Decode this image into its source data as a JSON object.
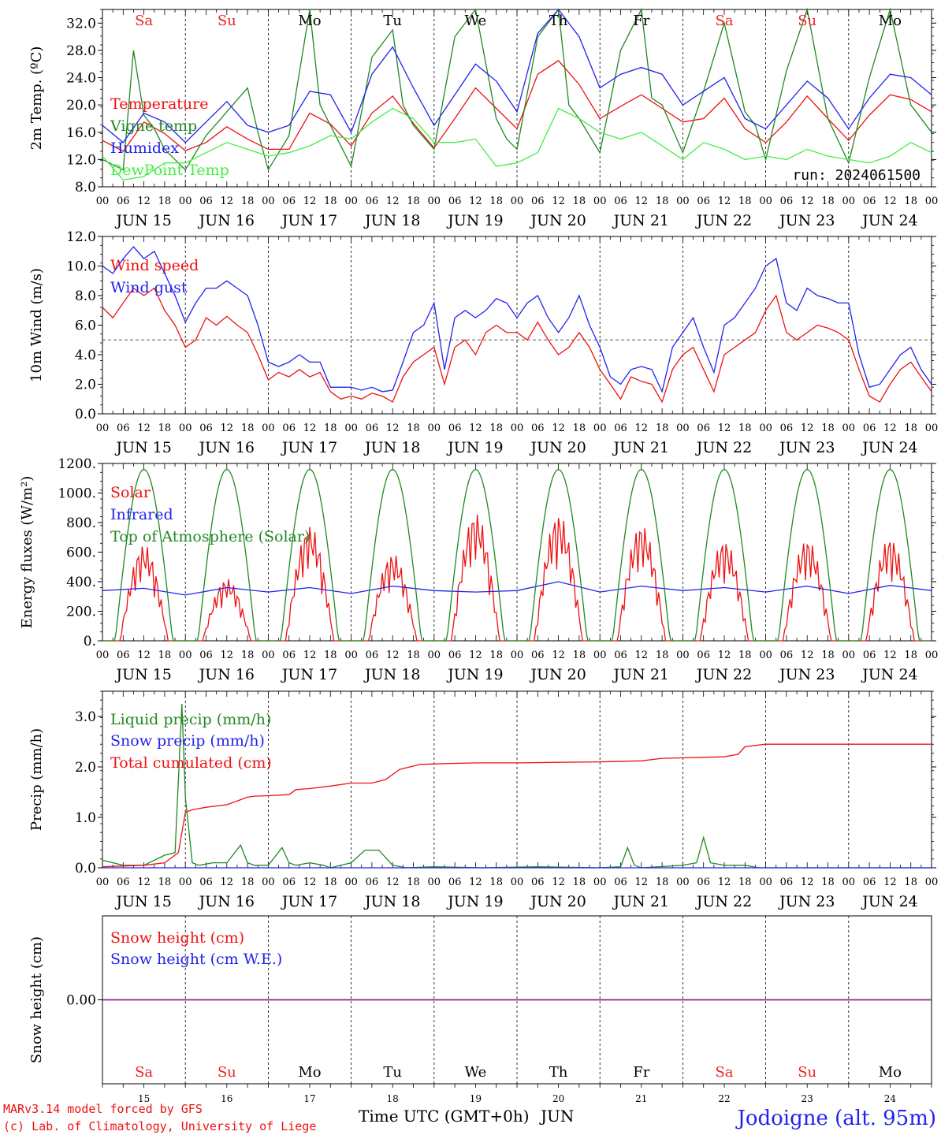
{
  "days": [
    "15",
    "16",
    "17",
    "18",
    "19",
    "20",
    "21",
    "22",
    "23",
    "24"
  ],
  "month": "JUN",
  "hour_ticks": [
    "00",
    "06",
    "12",
    "18"
  ],
  "weekdays": [
    {
      "label": "Sa",
      "color": "#ee2222"
    },
    {
      "label": "Su",
      "color": "#ee2222"
    },
    {
      "label": "Mo",
      "color": "#000000"
    },
    {
      "label": "Tu",
      "color": "#000000"
    },
    {
      "label": "We",
      "color": "#000000"
    },
    {
      "label": "Th",
      "color": "#000000"
    },
    {
      "label": "Fr",
      "color": "#000000"
    },
    {
      "label": "Sa",
      "color": "#ee2222"
    },
    {
      "label": "Su",
      "color": "#ee2222"
    },
    {
      "label": "Mo",
      "color": "#000000"
    }
  ],
  "run_label": "run: 2024061500",
  "footer": {
    "credit_line1": "MARv3.14 model forced by GFS",
    "credit_line2": "(c) Lab. of Climatology, University of Liege",
    "xlabel": "Time UTC (GMT+0h)",
    "month_label": "JUN",
    "station": "Jodoigne (alt. 95m)"
  },
  "chart_data": [
    {
      "type": "line",
      "ylabel": "2m Temp. (ºC)",
      "ylim": [
        8,
        34
      ],
      "yticks": [
        "8.0",
        "12.0",
        "16.0",
        "20.0",
        "24.0",
        "28.0",
        "32.0"
      ],
      "x_unit": "hours since JUN 15 00 UTC",
      "series": [
        {
          "name": "Temperature",
          "color": "#ee1111",
          "x": [
            0,
            6,
            12,
            18,
            24,
            30,
            36,
            42,
            48,
            54,
            60,
            66,
            72,
            78,
            84,
            90,
            96,
            102,
            108,
            114,
            120,
            126,
            132,
            138,
            144,
            150,
            156,
            162,
            168,
            174,
            180,
            186,
            192,
            198,
            204,
            210,
            216,
            222,
            228,
            234,
            240
          ],
          "y": [
            14.8,
            13.2,
            17.5,
            15.8,
            13.3,
            14.5,
            16.8,
            15.0,
            13.5,
            13.5,
            18.8,
            17.2,
            14.0,
            18.8,
            21.3,
            17.3,
            13.7,
            18.0,
            22.5,
            19.5,
            16.5,
            24.5,
            26.5,
            23.0,
            18.0,
            19.8,
            21.5,
            19.5,
            17.5,
            18.0,
            21.0,
            16.5,
            14.5,
            17.5,
            21.3,
            18.0,
            14.8,
            18.5,
            21.5,
            20.8,
            19.0
          ]
        },
        {
          "name": "Vigne temp",
          "color": "#228822",
          "x": [
            0,
            6,
            9,
            12,
            15,
            18,
            24,
            30,
            36,
            42,
            45,
            48,
            54,
            60,
            63,
            66,
            72,
            78,
            84,
            87,
            90,
            96,
            102,
            108,
            114,
            117,
            120,
            126,
            132,
            135,
            138,
            144,
            150,
            156,
            159,
            162,
            168,
            174,
            180,
            186,
            189,
            192,
            198,
            204,
            210,
            216,
            222,
            228,
            234,
            240
          ],
          "y": [
            12.0,
            10.5,
            28.0,
            18.5,
            16.5,
            13.5,
            10.5,
            15.5,
            19.0,
            22.5,
            16.0,
            10.5,
            15.5,
            34.0,
            20.0,
            17.0,
            11.0,
            27.0,
            31.0,
            20.0,
            17.0,
            13.5,
            30.0,
            34.0,
            18.0,
            15.0,
            13.5,
            30.0,
            34.0,
            20.0,
            18.0,
            13.0,
            28.0,
            34.0,
            21.0,
            20.0,
            13.0,
            22.0,
            32.0,
            19.0,
            17.0,
            12.0,
            25.0,
            34.0,
            18.0,
            11.5,
            24.0,
            34.0,
            20.0,
            16.0
          ]
        },
        {
          "name": "Humidex",
          "color": "#2222ee",
          "x": [
            0,
            6,
            12,
            18,
            24,
            30,
            36,
            42,
            48,
            54,
            60,
            66,
            72,
            78,
            84,
            90,
            96,
            102,
            108,
            114,
            120,
            126,
            132,
            138,
            144,
            150,
            156,
            162,
            168,
            174,
            180,
            186,
            192,
            198,
            204,
            210,
            216,
            222,
            228,
            234,
            240
          ],
          "y": [
            17.0,
            14.5,
            18.8,
            17.5,
            14.5,
            17.5,
            20.5,
            17.0,
            16.0,
            17.0,
            22.0,
            21.5,
            16.0,
            24.5,
            28.5,
            22.5,
            17.0,
            21.5,
            26.0,
            23.5,
            19.0,
            30.5,
            34.0,
            30.0,
            22.5,
            24.5,
            25.5,
            24.5,
            20.0,
            22.0,
            24.0,
            18.0,
            16.5,
            20.0,
            23.5,
            21.0,
            16.5,
            21.0,
            24.5,
            24.0,
            21.5
          ]
        },
        {
          "name": "DewPoint Temp",
          "color": "#44ee44",
          "x": [
            0,
            6,
            12,
            18,
            24,
            30,
            36,
            42,
            48,
            54,
            60,
            66,
            72,
            78,
            84,
            90,
            96,
            102,
            108,
            114,
            120,
            126,
            132,
            138,
            144,
            150,
            156,
            162,
            168,
            174,
            180,
            186,
            192,
            198,
            204,
            210,
            216,
            222,
            228,
            234,
            240
          ],
          "y": [
            12.5,
            9.0,
            9.5,
            11.5,
            11.5,
            13.0,
            14.5,
            13.5,
            12.5,
            13.0,
            14.0,
            15.5,
            15.0,
            17.5,
            19.5,
            18.0,
            14.5,
            14.5,
            15.0,
            11.0,
            11.5,
            13.0,
            19.5,
            18.0,
            16.0,
            15.0,
            16.0,
            14.0,
            12.0,
            14.5,
            13.5,
            12.0,
            12.5,
            12.0,
            13.5,
            12.5,
            12.0,
            11.5,
            12.5,
            14.5,
            13.0
          ]
        }
      ]
    },
    {
      "type": "line",
      "ylabel": "10m Wind (m/s)",
      "ylim": [
        0,
        12
      ],
      "yticks": [
        "0.0",
        "2.0",
        "4.0",
        "6.0",
        "8.0",
        "10.0",
        "12.0"
      ],
      "reference_line": 5,
      "x_unit": "hours since JUN 15 00 UTC",
      "series": [
        {
          "name": "Wind speed",
          "color": "#ee1111",
          "x": [
            0,
            3,
            6,
            9,
            12,
            15,
            18,
            21,
            24,
            27,
            30,
            33,
            36,
            39,
            42,
            45,
            48,
            51,
            54,
            57,
            60,
            63,
            66,
            69,
            72,
            75,
            78,
            81,
            84,
            87,
            90,
            93,
            96,
            99,
            102,
            105,
            108,
            111,
            114,
            117,
            120,
            123,
            126,
            129,
            132,
            135,
            138,
            141,
            144,
            147,
            150,
            153,
            156,
            159,
            162,
            165,
            168,
            171,
            174,
            177,
            180,
            183,
            186,
            189,
            192,
            195,
            198,
            201,
            204,
            207,
            210,
            213,
            216,
            219,
            222,
            225,
            228,
            231,
            234,
            237,
            240
          ],
          "y": [
            7.2,
            6.5,
            7.5,
            8.5,
            8.0,
            8.5,
            7.0,
            6.0,
            4.5,
            5.0,
            6.5,
            6.0,
            6.6,
            6.0,
            5.5,
            4.0,
            2.3,
            2.8,
            2.5,
            3.0,
            2.5,
            2.8,
            1.5,
            1.0,
            1.2,
            1.0,
            1.4,
            1.2,
            0.8,
            2.5,
            3.5,
            4.0,
            4.5,
            2.0,
            4.5,
            5.0,
            4.0,
            5.5,
            6.0,
            5.5,
            5.5,
            5.0,
            6.2,
            5.0,
            4.0,
            4.5,
            5.5,
            4.5,
            3.0,
            2.0,
            1.0,
            2.5,
            2.2,
            2.0,
            0.8,
            3.0,
            4.0,
            4.5,
            3.0,
            1.5,
            4.0,
            4.5,
            5.0,
            5.5,
            7.0,
            8.0,
            5.5,
            5.0,
            5.5,
            6.0,
            5.8,
            5.5,
            5.0,
            3.0,
            1.2,
            0.8,
            2.0,
            3.0,
            3.5,
            2.5,
            1.5
          ]
        },
        {
          "name": "Wind gust",
          "color": "#2222ee",
          "x": [
            0,
            3,
            6,
            9,
            12,
            15,
            18,
            21,
            24,
            27,
            30,
            33,
            36,
            39,
            42,
            45,
            48,
            51,
            54,
            57,
            60,
            63,
            66,
            69,
            72,
            75,
            78,
            81,
            84,
            87,
            90,
            93,
            96,
            99,
            102,
            105,
            108,
            111,
            114,
            117,
            120,
            123,
            126,
            129,
            132,
            135,
            138,
            141,
            144,
            147,
            150,
            153,
            156,
            159,
            162,
            165,
            168,
            171,
            174,
            177,
            180,
            183,
            186,
            189,
            192,
            195,
            198,
            201,
            204,
            207,
            210,
            213,
            216,
            219,
            222,
            225,
            228,
            231,
            234,
            237,
            240
          ],
          "y": [
            10.0,
            9.5,
            10.5,
            11.3,
            10.5,
            11.0,
            9.5,
            8.0,
            6.2,
            7.5,
            8.5,
            8.5,
            9.0,
            8.5,
            8.0,
            6.0,
            3.5,
            3.2,
            3.5,
            4.0,
            3.5,
            3.5,
            1.8,
            1.8,
            1.8,
            1.6,
            1.8,
            1.5,
            1.6,
            3.5,
            5.5,
            6.0,
            7.5,
            3.0,
            6.5,
            7.0,
            6.5,
            7.0,
            7.8,
            7.5,
            6.5,
            7.5,
            8.0,
            6.5,
            5.5,
            6.5,
            8.0,
            6.0,
            4.5,
            2.5,
            2.0,
            3.0,
            3.2,
            3.0,
            1.5,
            4.5,
            5.5,
            6.5,
            4.5,
            2.8,
            6.0,
            6.5,
            7.5,
            8.5,
            10.0,
            10.5,
            7.5,
            7.0,
            8.5,
            8.0,
            7.8,
            7.5,
            7.5,
            4.0,
            1.8,
            2.0,
            3.0,
            4.0,
            4.5,
            3.0,
            2.0
          ]
        }
      ]
    },
    {
      "type": "line",
      "ylabel": "Energy fluxes (W/m²)",
      "ylim": [
        0,
        1200
      ],
      "yticks": [
        "0.",
        "200.",
        "400.",
        "600.",
        "800.",
        "1000.",
        "1200."
      ],
      "x_unit": "hours since JUN 15 00 UTC",
      "series": [
        {
          "name": "Solar",
          "color": "#ee1111",
          "daily_peak": [
            650,
            420,
            780,
            590,
            870,
            860,
            790,
            680,
            690,
            700
          ]
        },
        {
          "name": "Infrared",
          "color": "#2222ee",
          "x": [
            0,
            12,
            24,
            36,
            48,
            60,
            72,
            84,
            96,
            108,
            120,
            132,
            144,
            156,
            168,
            180,
            192,
            204,
            216,
            228,
            240
          ],
          "y": [
            340,
            355,
            310,
            360,
            330,
            360,
            320,
            370,
            340,
            330,
            340,
            400,
            330,
            370,
            340,
            360,
            330,
            370,
            320,
            375,
            340
          ]
        },
        {
          "name": "Top of Atmosphere (Solar)",
          "color": "#228822",
          "daily_peak": [
            1160,
            1160,
            1160,
            1160,
            1160,
            1160,
            1160,
            1160,
            1160,
            1160
          ],
          "sunrise_hour": 3.7,
          "sunset_hour": 20.3
        }
      ]
    },
    {
      "type": "line",
      "ylabel": "Precip (mm/h)",
      "ylim": [
        0,
        3.5
      ],
      "yticks": [
        "0.0",
        "1.0",
        "2.0",
        "3.0"
      ],
      "x_unit": "hours since JUN 15 00 UTC",
      "series": [
        {
          "name": "Liquid precip (mm/h)",
          "color": "#228822",
          "x": [
            0,
            6,
            12,
            18,
            21,
            23,
            24,
            26,
            28,
            32,
            36,
            40,
            42,
            44,
            48,
            52,
            54,
            56,
            60,
            64,
            66,
            72,
            76,
            80,
            84,
            88,
            96,
            110,
            126,
            144,
            150,
            152,
            154,
            156,
            168,
            172,
            174,
            176,
            180,
            186,
            190,
            192,
            196,
            200,
            240
          ],
          "y": [
            0.15,
            0.05,
            0.05,
            0.25,
            0.3,
            3.25,
            1.4,
            0.1,
            0.05,
            0.1,
            0.1,
            0.45,
            0.1,
            0.05,
            0.05,
            0.4,
            0.1,
            0.05,
            0.1,
            0.05,
            0.0,
            0.1,
            0.35,
            0.35,
            0.05,
            0.0,
            0.02,
            0.0,
            0.02,
            0.0,
            0.02,
            0.4,
            0.05,
            0.0,
            0.05,
            0.1,
            0.6,
            0.1,
            0.05,
            0.05,
            0.0,
            0.0,
            0.0,
            0.0,
            0.0
          ]
        },
        {
          "name": "Snow precip (mm/h)",
          "color": "#2222ee",
          "x": [
            0,
            240
          ],
          "y": [
            0,
            0
          ]
        },
        {
          "name": "Total cumulated (cm)",
          "color": "#ee1111",
          "x": [
            0,
            12,
            18,
            22,
            24,
            26,
            30,
            36,
            42,
            44,
            48,
            54,
            56,
            60,
            66,
            72,
            78,
            82,
            86,
            92,
            96,
            102,
            108,
            120,
            132,
            144,
            156,
            162,
            168,
            180,
            184,
            186,
            192,
            204,
            216,
            228,
            240
          ],
          "y": [
            0.02,
            0.05,
            0.1,
            0.3,
            1.1,
            1.15,
            1.2,
            1.25,
            1.4,
            1.42,
            1.43,
            1.45,
            1.55,
            1.57,
            1.62,
            1.68,
            1.68,
            1.75,
            1.95,
            2.05,
            2.06,
            2.07,
            2.08,
            2.08,
            2.09,
            2.1,
            2.12,
            2.17,
            2.18,
            2.2,
            2.25,
            2.4,
            2.45,
            2.45,
            2.45,
            2.45,
            2.45
          ]
        }
      ]
    },
    {
      "type": "line",
      "ylabel": "Snow height (cm)",
      "yticks": [
        "0.00"
      ],
      "series": [
        {
          "name": "Snow height (cm)",
          "color": "#ee1111",
          "x": [
            0,
            240
          ],
          "y": [
            0,
            0
          ]
        },
        {
          "name": "Snow height (cm W.E.)",
          "color": "#2222ee",
          "x": [
            0,
            240
          ],
          "y": [
            0,
            0
          ]
        }
      ]
    }
  ]
}
